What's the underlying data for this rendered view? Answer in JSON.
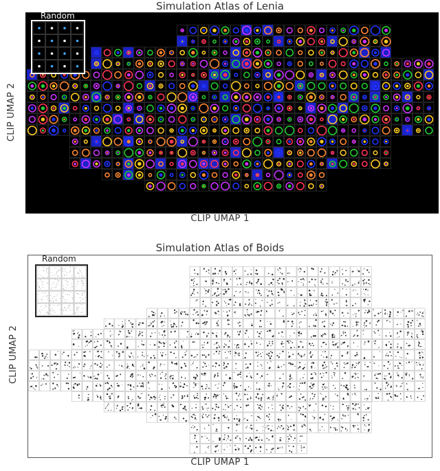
{
  "lenia": {
    "title": "Simulation Atlas of Lenia",
    "inset_label": "Random",
    "xlabel": "CLIP UMAP 1",
    "ylabel": "CLIP UMAP 2",
    "colors": {
      "background": "#000000",
      "inset_border": "#ffffff",
      "creature_colors": [
        "#2233ff",
        "#22cc33",
        "#ff3355",
        "#ffcc22",
        "#cc33ff",
        "#ff8833"
      ]
    }
  },
  "boids": {
    "title": "Simulation Atlas of Boids",
    "inset_label": "Random",
    "xlabel": "CLIP UMAP 1",
    "ylabel": "CLIP UMAP 2",
    "colors": {
      "background": "#ffffff",
      "inset_border": "#222222",
      "tile_border": "#bbbbbb",
      "boid": "#333333"
    }
  }
}
